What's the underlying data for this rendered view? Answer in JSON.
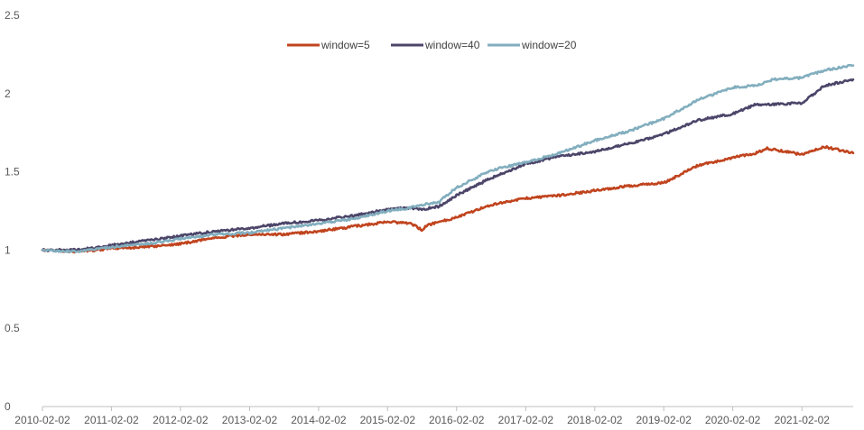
{
  "chart_data": {
    "type": "line",
    "title": "",
    "xlabel": "",
    "ylabel": "",
    "x_ticks": [
      "2010-02-02",
      "2011-02-02",
      "2012-02-02",
      "2013-02-02",
      "2014-02-02",
      "2015-02-02",
      "2016-02-02",
      "2017-02-02",
      "2018-02-02",
      "2019-02-02",
      "2020-02-02",
      "2021-02-02"
    ],
    "y_ticks": [
      "0",
      "0.5",
      "1",
      "1.5",
      "2",
      "2.5"
    ],
    "ylim": [
      0,
      2.5
    ],
    "xlim": [
      "2010-02-02",
      "2021-10-31"
    ],
    "grid": false,
    "legend_position": "top-center",
    "series": [
      {
        "name": "window=5",
        "color": "#C0441E",
        "x": [
          "2010-02-02",
          "2010-08-02",
          "2011-02-02",
          "2011-08-02",
          "2012-02-02",
          "2012-08-02",
          "2013-02-02",
          "2013-08-02",
          "2014-02-02",
          "2014-08-02",
          "2015-02-02",
          "2015-06-02",
          "2015-08-02",
          "2015-09-02",
          "2016-02-02",
          "2016-08-02",
          "2017-02-02",
          "2017-08-02",
          "2018-02-02",
          "2018-08-02",
          "2019-02-02",
          "2019-08-02",
          "2020-02-02",
          "2020-06-02",
          "2020-08-02",
          "2021-02-02",
          "2021-06-02",
          "2021-10-31"
        ],
        "values": [
          1.0,
          0.99,
          1.01,
          1.02,
          1.04,
          1.08,
          1.1,
          1.1,
          1.12,
          1.15,
          1.18,
          1.17,
          1.13,
          1.16,
          1.21,
          1.29,
          1.33,
          1.35,
          1.38,
          1.41,
          1.43,
          1.54,
          1.59,
          1.62,
          1.65,
          1.61,
          1.66,
          1.62
        ]
      },
      {
        "name": "window=40",
        "color": "#4C4569",
        "x": [
          "2010-02-02",
          "2010-08-02",
          "2011-02-02",
          "2011-08-02",
          "2012-02-02",
          "2012-08-02",
          "2013-02-02",
          "2013-08-02",
          "2014-02-02",
          "2014-08-02",
          "2015-02-02",
          "2015-06-02",
          "2015-08-02",
          "2015-11-02",
          "2016-02-02",
          "2016-08-02",
          "2017-02-02",
          "2017-08-02",
          "2018-02-02",
          "2018-08-02",
          "2019-02-02",
          "2019-08-02",
          "2020-02-02",
          "2020-06-02",
          "2020-09-02",
          "2021-02-02",
          "2021-06-02",
          "2021-10-31"
        ],
        "values": [
          1.0,
          1.0,
          1.03,
          1.06,
          1.09,
          1.12,
          1.14,
          1.17,
          1.19,
          1.22,
          1.26,
          1.27,
          1.26,
          1.28,
          1.35,
          1.46,
          1.55,
          1.6,
          1.63,
          1.68,
          1.74,
          1.83,
          1.87,
          1.93,
          1.93,
          1.94,
          2.05,
          2.09
        ]
      },
      {
        "name": "window=20",
        "color": "#82AEBE",
        "x": [
          "2010-02-02",
          "2010-08-02",
          "2011-02-02",
          "2011-08-02",
          "2012-02-02",
          "2012-08-02",
          "2013-02-02",
          "2013-08-02",
          "2014-02-02",
          "2014-08-02",
          "2015-02-02",
          "2015-06-02",
          "2015-08-02",
          "2015-11-02",
          "2016-02-02",
          "2016-08-02",
          "2017-02-02",
          "2017-08-02",
          "2018-02-02",
          "2018-08-02",
          "2019-02-02",
          "2019-08-02",
          "2020-02-02",
          "2020-06-02",
          "2020-09-02",
          "2021-02-02",
          "2021-06-02",
          "2021-10-31"
        ],
        "values": [
          1.0,
          0.99,
          1.02,
          1.04,
          1.07,
          1.1,
          1.11,
          1.14,
          1.17,
          1.2,
          1.25,
          1.27,
          1.29,
          1.31,
          1.4,
          1.51,
          1.56,
          1.62,
          1.7,
          1.76,
          1.84,
          1.96,
          2.04,
          2.05,
          2.09,
          2.1,
          2.15,
          2.18
        ]
      }
    ]
  }
}
